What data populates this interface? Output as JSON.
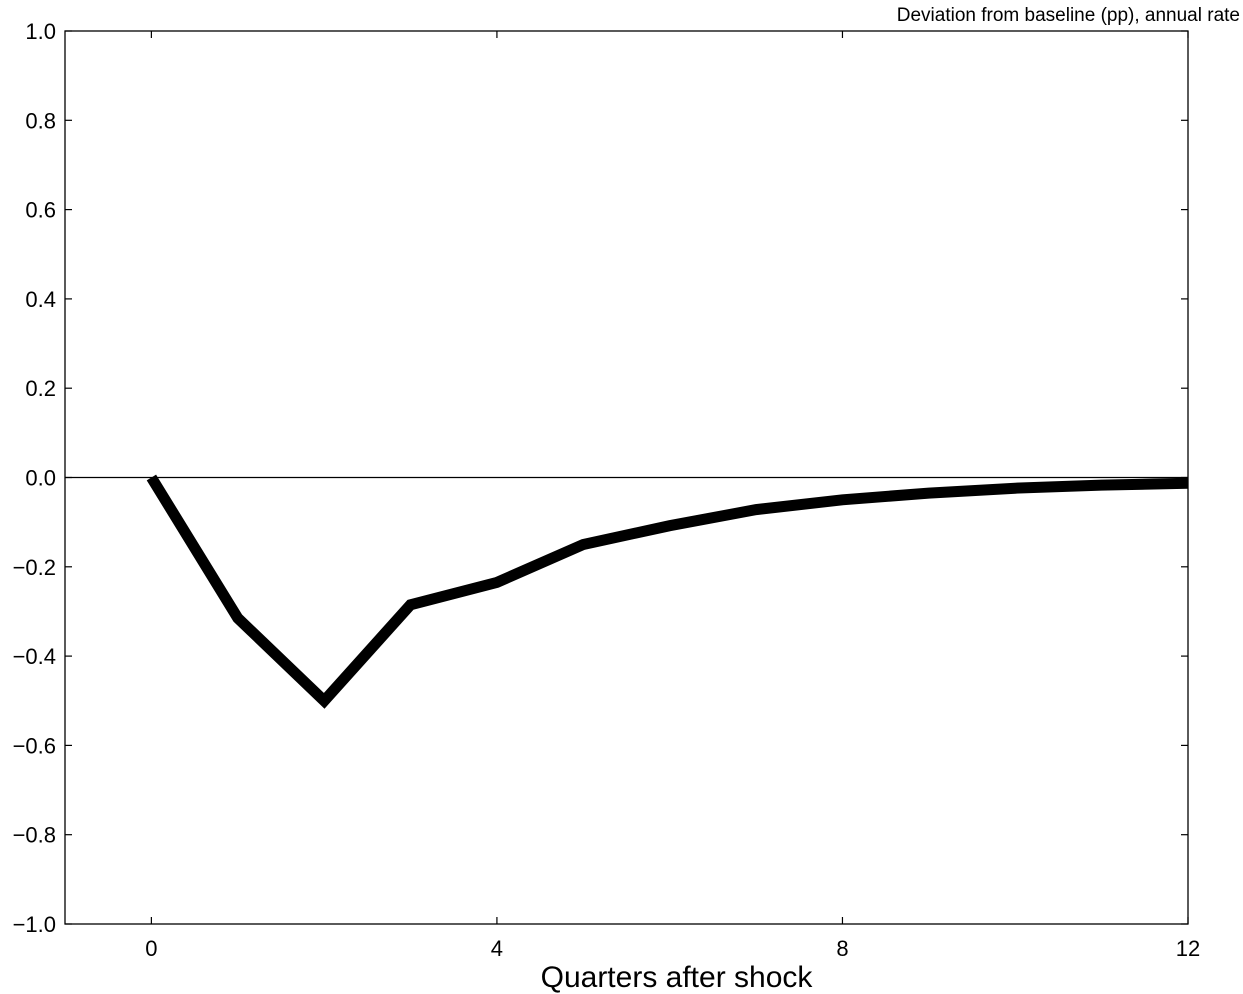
{
  "chart_data": {
    "type": "line",
    "title": "",
    "unit_note": "Deviation from baseline (pp), annual rate",
    "xlabel": "Quarters after shock",
    "ylabel": "",
    "xlim": [
      -1,
      12
    ],
    "ylim": [
      -1.0,
      1.0
    ],
    "x_ticks": [
      0,
      4,
      8,
      12
    ],
    "x_tick_labels": [
      "0",
      "4",
      "8",
      "12"
    ],
    "y_ticks": [
      1.0,
      0.8,
      0.6,
      0.4,
      0.2,
      0.0,
      -0.2,
      -0.4,
      -0.6,
      -0.8,
      -1.0
    ],
    "y_tick_labels": [
      "1.0",
      "0.8",
      "0.6",
      "0.4",
      "0.2",
      "0.0",
      "−0.2",
      "−0.4",
      "−0.6",
      "−0.8",
      "−1.0"
    ],
    "zero_line": true,
    "grid": false,
    "colors": {
      "line": "#000000",
      "axes": "#000000",
      "background": "#ffffff"
    },
    "series": [
      {
        "x": [
          0,
          1,
          2,
          3,
          4,
          5,
          6,
          7,
          8,
          9,
          10,
          11,
          12
        ],
        "values": [
          0.0,
          -0.315,
          -0.5,
          -0.285,
          -0.235,
          -0.15,
          -0.108,
          -0.072,
          -0.05,
          -0.035,
          -0.024,
          -0.017,
          -0.013
        ]
      }
    ]
  }
}
